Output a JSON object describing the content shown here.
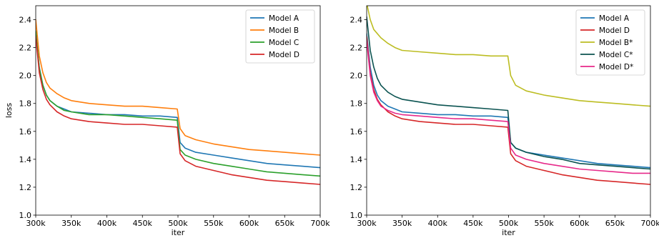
{
  "chart_data": [
    {
      "type": "line",
      "title": "",
      "xlabel": "iter",
      "ylabel": "loss",
      "xlim": [
        300000,
        700000
      ],
      "ylim": [
        1.0,
        2.5
      ],
      "xticks": [
        300000,
        350000,
        400000,
        450000,
        500000,
        550000,
        600000,
        650000,
        700000
      ],
      "xtick_labels": [
        "300k",
        "350k",
        "400k",
        "450k",
        "500k",
        "550k",
        "600k",
        "650k",
        "700k"
      ],
      "yticks": [
        1.0,
        1.2,
        1.4,
        1.6,
        1.8,
        2.0,
        2.2,
        2.4
      ],
      "ytick_labels": [
        "1.0",
        "1.2",
        "1.4",
        "1.6",
        "1.8",
        "2.0",
        "2.2",
        "2.4"
      ],
      "grid": false,
      "legend_position": "top-right",
      "series": [
        {
          "name": "Model A",
          "color": "#1f77b4",
          "x": [
            300000,
            305000,
            310000,
            315000,
            320000,
            330000,
            340000,
            350000,
            375000,
            400000,
            425000,
            450000,
            475000,
            499000,
            503000,
            510000,
            525000,
            550000,
            575000,
            600000,
            625000,
            650000,
            675000,
            700000
          ],
          "y": [
            2.3,
            2.06,
            1.93,
            1.86,
            1.82,
            1.78,
            1.76,
            1.74,
            1.73,
            1.72,
            1.72,
            1.71,
            1.71,
            1.7,
            1.52,
            1.48,
            1.45,
            1.43,
            1.41,
            1.39,
            1.37,
            1.36,
            1.35,
            1.34
          ]
        },
        {
          "name": "Model B",
          "color": "#ff7f0e",
          "x": [
            300000,
            305000,
            310000,
            315000,
            320000,
            330000,
            340000,
            350000,
            375000,
            400000,
            425000,
            450000,
            475000,
            499000,
            503000,
            510000,
            525000,
            550000,
            575000,
            600000,
            625000,
            650000,
            675000,
            700000
          ],
          "y": [
            2.4,
            2.14,
            2.02,
            1.95,
            1.91,
            1.87,
            1.84,
            1.82,
            1.8,
            1.79,
            1.78,
            1.78,
            1.77,
            1.76,
            1.62,
            1.57,
            1.54,
            1.51,
            1.49,
            1.47,
            1.46,
            1.45,
            1.44,
            1.43
          ]
        },
        {
          "name": "Model C",
          "color": "#2ca02c",
          "x": [
            300000,
            305000,
            310000,
            315000,
            320000,
            330000,
            340000,
            350000,
            375000,
            400000,
            425000,
            450000,
            475000,
            499000,
            503000,
            510000,
            525000,
            550000,
            575000,
            600000,
            625000,
            650000,
            675000,
            700000
          ],
          "y": [
            2.32,
            2.05,
            1.93,
            1.86,
            1.82,
            1.78,
            1.75,
            1.74,
            1.72,
            1.72,
            1.71,
            1.7,
            1.69,
            1.68,
            1.47,
            1.43,
            1.4,
            1.37,
            1.35,
            1.33,
            1.31,
            1.3,
            1.29,
            1.28
          ]
        },
        {
          "name": "Model D",
          "color": "#d62728",
          "x": [
            300000,
            305000,
            310000,
            315000,
            320000,
            330000,
            340000,
            350000,
            375000,
            400000,
            425000,
            450000,
            475000,
            499000,
            503000,
            510000,
            525000,
            550000,
            575000,
            600000,
            625000,
            650000,
            675000,
            700000
          ],
          "y": [
            2.28,
            2.02,
            1.9,
            1.83,
            1.79,
            1.74,
            1.71,
            1.69,
            1.67,
            1.66,
            1.65,
            1.65,
            1.64,
            1.63,
            1.44,
            1.39,
            1.35,
            1.32,
            1.29,
            1.27,
            1.25,
            1.24,
            1.23,
            1.22
          ]
        }
      ]
    },
    {
      "type": "line",
      "title": "",
      "xlabel": "iter",
      "ylabel": "",
      "xlim": [
        300000,
        700000
      ],
      "ylim": [
        1.0,
        2.5
      ],
      "xticks": [
        300000,
        350000,
        400000,
        450000,
        500000,
        550000,
        600000,
        650000,
        700000
      ],
      "xtick_labels": [
        "300k",
        "350k",
        "400k",
        "450k",
        "500k",
        "550k",
        "600k",
        "650k",
        "700k"
      ],
      "yticks": [
        1.0,
        1.2,
        1.4,
        1.6,
        1.8,
        2.0,
        2.2,
        2.4
      ],
      "ytick_labels": [
        "1.0",
        "1.2",
        "1.4",
        "1.6",
        "1.8",
        "2.0",
        "2.2",
        "2.4"
      ],
      "grid": false,
      "legend_position": "top-right",
      "series": [
        {
          "name": "Model A",
          "color": "#1f77b4",
          "x": [
            300000,
            305000,
            310000,
            315000,
            320000,
            330000,
            340000,
            350000,
            375000,
            400000,
            425000,
            450000,
            475000,
            499000,
            503000,
            510000,
            525000,
            550000,
            575000,
            600000,
            625000,
            650000,
            675000,
            700000
          ],
          "y": [
            2.3,
            2.06,
            1.93,
            1.86,
            1.82,
            1.78,
            1.76,
            1.74,
            1.73,
            1.72,
            1.72,
            1.71,
            1.71,
            1.7,
            1.52,
            1.48,
            1.45,
            1.43,
            1.41,
            1.39,
            1.37,
            1.36,
            1.35,
            1.34
          ]
        },
        {
          "name": "Model D",
          "color": "#d62728",
          "x": [
            300000,
            305000,
            310000,
            315000,
            320000,
            330000,
            340000,
            350000,
            375000,
            400000,
            425000,
            450000,
            475000,
            499000,
            503000,
            510000,
            525000,
            550000,
            575000,
            600000,
            625000,
            650000,
            675000,
            700000
          ],
          "y": [
            2.28,
            2.02,
            1.9,
            1.83,
            1.79,
            1.74,
            1.71,
            1.69,
            1.67,
            1.66,
            1.65,
            1.65,
            1.64,
            1.63,
            1.44,
            1.39,
            1.35,
            1.32,
            1.29,
            1.27,
            1.25,
            1.24,
            1.23,
            1.22
          ]
        },
        {
          "name": "Model B*",
          "color": "#bcbd22",
          "x": [
            300000,
            305000,
            310000,
            320000,
            330000,
            340000,
            350000,
            375000,
            400000,
            425000,
            450000,
            475000,
            499000,
            503000,
            510000,
            525000,
            550000,
            575000,
            600000,
            625000,
            650000,
            675000,
            700000
          ],
          "y": [
            2.52,
            2.4,
            2.33,
            2.27,
            2.23,
            2.2,
            2.18,
            2.17,
            2.16,
            2.15,
            2.15,
            2.14,
            2.14,
            2.0,
            1.93,
            1.89,
            1.86,
            1.84,
            1.82,
            1.81,
            1.8,
            1.79,
            1.78
          ]
        },
        {
          "name": "Model C*",
          "color": "#0b5351",
          "x": [
            300000,
            305000,
            310000,
            315000,
            320000,
            330000,
            340000,
            350000,
            375000,
            400000,
            425000,
            450000,
            475000,
            499000,
            503000,
            510000,
            525000,
            550000,
            575000,
            600000,
            625000,
            650000,
            675000,
            700000
          ],
          "y": [
            2.42,
            2.18,
            2.06,
            1.98,
            1.93,
            1.88,
            1.85,
            1.83,
            1.81,
            1.79,
            1.78,
            1.77,
            1.76,
            1.75,
            1.52,
            1.48,
            1.45,
            1.42,
            1.4,
            1.37,
            1.36,
            1.35,
            1.34,
            1.33
          ]
        },
        {
          "name": "Model D*",
          "color": "#e7298a",
          "x": [
            300000,
            305000,
            310000,
            315000,
            320000,
            330000,
            340000,
            350000,
            375000,
            400000,
            425000,
            450000,
            475000,
            499000,
            503000,
            510000,
            525000,
            550000,
            575000,
            600000,
            625000,
            650000,
            675000,
            700000
          ],
          "y": [
            2.25,
            2.0,
            1.88,
            1.82,
            1.78,
            1.75,
            1.73,
            1.72,
            1.71,
            1.7,
            1.69,
            1.69,
            1.68,
            1.67,
            1.48,
            1.43,
            1.4,
            1.37,
            1.35,
            1.33,
            1.32,
            1.31,
            1.3,
            1.3
          ]
        }
      ]
    }
  ]
}
